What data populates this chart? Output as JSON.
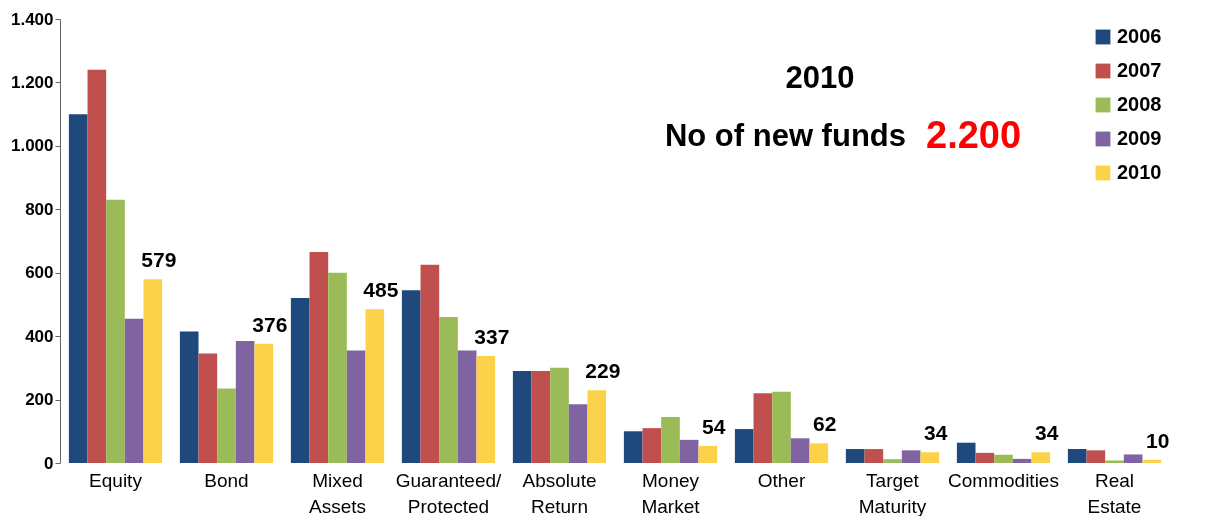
{
  "chart_data": {
    "type": "bar",
    "title": "2010",
    "annotations": [
      "No of new funds",
      "2.200"
    ],
    "categories": [
      "Equity",
      "Bond",
      "Mixed Assets",
      "Guaranteed/ Protected",
      "Absolute Return",
      "Money Market",
      "Other",
      "Target Maturity",
      "Commodities",
      "Real Estate"
    ],
    "series": [
      {
        "name": "2006",
        "color": "#1f497d",
        "values": [
          1100,
          415,
          520,
          545,
          290,
          100,
          107,
          44,
          64,
          44
        ]
      },
      {
        "name": "2007",
        "color": "#c0504d",
        "values": [
          1240,
          345,
          665,
          625,
          290,
          110,
          220,
          44,
          32,
          40
        ]
      },
      {
        "name": "2008",
        "color": "#9bbb59",
        "values": [
          830,
          235,
          600,
          460,
          300,
          145,
          225,
          12,
          26,
          8
        ]
      },
      {
        "name": "2009",
        "color": "#8064a2",
        "values": [
          455,
          385,
          355,
          355,
          185,
          73,
          78,
          40,
          13,
          27
        ]
      },
      {
        "name": "2010",
        "color": "#fcd24b",
        "values": [
          579,
          376,
          485,
          337,
          229,
          54,
          62,
          34,
          34,
          10
        ],
        "value_labels": [
          "579",
          "376",
          "485",
          "337",
          "229",
          "54",
          "62",
          "34",
          "34",
          "10"
        ]
      }
    ],
    "ylim": [
      0,
      1400
    ],
    "yticks": [
      0,
      200,
      400,
      600,
      800,
      {
        "value": 1000,
        "label": "1.000"
      },
      {
        "value": 1200,
        "label": "1.200"
      },
      {
        "value": 1400,
        "label": "1.400"
      }
    ],
    "legend": "top right"
  }
}
